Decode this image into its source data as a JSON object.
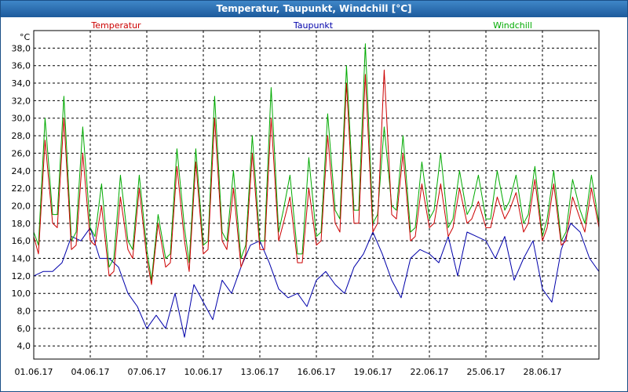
{
  "window": {
    "title": "Temperatur, Taupunkt, Windchill [°C]"
  },
  "chart_data": {
    "type": "line",
    "title": "Temperatur, Taupunkt, Windchill [°C]",
    "ylabel": "°C",
    "xlabel": "",
    "xlim": [
      0,
      30
    ],
    "ylim": [
      2.5,
      40
    ],
    "grid": true,
    "legend_position": "top",
    "y_ticks": [
      "4,0",
      "6,0",
      "8,0",
      "10,0",
      "12,0",
      "14,0",
      "16,0",
      "18,0",
      "20,0",
      "22,0",
      "24,0",
      "26,0",
      "28,0",
      "30,0",
      "32,0",
      "34,0",
      "36,0",
      "38,0"
    ],
    "x_ticks": [
      "01.06.17",
      "04.06.17",
      "07.06.17",
      "10.06.17",
      "13.06.17",
      "16.06.17",
      "19.06.17",
      "22.06.17",
      "25.06.17",
      "28.06.17"
    ],
    "series": [
      {
        "name": "Temperatur",
        "color": "#cc0000",
        "x": [
          0,
          0.25,
          0.6,
          1.0,
          1.25,
          1.6,
          2.0,
          2.25,
          2.6,
          3.0,
          3.25,
          3.6,
          4.0,
          4.25,
          4.6,
          5.0,
          5.25,
          5.6,
          6.0,
          6.25,
          6.6,
          7.0,
          7.25,
          7.6,
          8.0,
          8.25,
          8.6,
          9.0,
          9.25,
          9.6,
          10.0,
          10.25,
          10.6,
          11.0,
          11.25,
          11.6,
          12.0,
          12.25,
          12.6,
          13.0,
          13.25,
          13.6,
          14.0,
          14.25,
          14.6,
          15.0,
          15.25,
          15.6,
          16.0,
          16.25,
          16.6,
          17.0,
          17.25,
          17.6,
          18.0,
          18.25,
          18.6,
          19.0,
          19.25,
          19.6,
          20.0,
          20.25,
          20.6,
          21.0,
          21.25,
          21.6,
          22.0,
          22.25,
          22.6,
          23.0,
          23.25,
          23.6,
          24.0,
          24.25,
          24.6,
          25.0,
          25.25,
          25.6,
          26.0,
          26.25,
          26.6,
          27.0,
          27.25,
          27.6,
          28.0,
          28.25,
          28.6,
          29.0,
          29.25,
          29.6,
          30.0
        ],
        "values": [
          16.5,
          14.5,
          27.5,
          18.0,
          17.5,
          30.0,
          15.0,
          15.5,
          26.0,
          16.0,
          15.5,
          20.0,
          12.0,
          12.5,
          21.0,
          15.0,
          14.0,
          22.0,
          14.0,
          11.0,
          18.0,
          13.0,
          13.5,
          24.5,
          16.0,
          12.5,
          25.0,
          14.5,
          15.0,
          30.0,
          16.0,
          15.0,
          22.0,
          13.0,
          14.5,
          26.0,
          15.0,
          15.0,
          30.0,
          16.0,
          18.0,
          21.0,
          13.5,
          13.5,
          22.0,
          15.5,
          16.0,
          28.0,
          18.0,
          17.0,
          34.0,
          18.0,
          18.0,
          35.0,
          17.0,
          18.0,
          35.5,
          19.0,
          18.5,
          26.0,
          16.0,
          16.5,
          22.5,
          17.5,
          18.0,
          22.5,
          16.5,
          17.5,
          22.0,
          18.0,
          18.5,
          20.5,
          17.5,
          17.5,
          21.0,
          18.5,
          19.5,
          21.5,
          17.0,
          18.0,
          23.0,
          16.0,
          17.5,
          22.5,
          15.5,
          16.0,
          21.0,
          18.5,
          17.0,
          22.0,
          17.5
        ]
      },
      {
        "name": "Taupunkt",
        "color": "#0000aa",
        "x": [
          0,
          0.5,
          1.0,
          1.5,
          2.0,
          2.5,
          3.0,
          3.5,
          4.0,
          4.5,
          5.0,
          5.5,
          6.0,
          6.5,
          7.0,
          7.5,
          8.0,
          8.5,
          9.0,
          9.5,
          10.0,
          10.5,
          11.0,
          11.5,
          12.0,
          12.5,
          13.0,
          13.5,
          14.0,
          14.5,
          15.0,
          15.5,
          16.0,
          16.5,
          17.0,
          17.5,
          18.0,
          18.5,
          19.0,
          19.5,
          20.0,
          20.5,
          21.0,
          21.5,
          22.0,
          22.5,
          23.0,
          23.5,
          24.0,
          24.5,
          25.0,
          25.5,
          26.0,
          26.5,
          27.0,
          27.5,
          28.0,
          28.5,
          29.0,
          29.5,
          30.0
        ],
        "values": [
          12.0,
          12.5,
          12.5,
          13.5,
          16.5,
          16.0,
          17.5,
          14.0,
          14.0,
          13.0,
          10.0,
          8.5,
          6.0,
          7.5,
          6.0,
          10.0,
          5.0,
          11.0,
          9.0,
          7.0,
          11.5,
          10.0,
          13.0,
          15.5,
          16.0,
          13.5,
          10.5,
          9.5,
          10.0,
          8.5,
          11.5,
          12.5,
          11.0,
          10.0,
          13.0,
          14.5,
          17.0,
          14.5,
          11.5,
          9.5,
          14.0,
          15.0,
          14.5,
          13.5,
          16.5,
          12.0,
          17.0,
          16.5,
          16.0,
          14.0,
          16.5,
          11.5,
          14.0,
          16.0,
          10.5,
          9.0,
          15.0,
          18.0,
          17.0,
          14.0,
          12.5
        ]
      },
      {
        "name": "Windchill",
        "color": "#00aa00",
        "x": [
          0,
          0.25,
          0.6,
          1.0,
          1.25,
          1.6,
          2.0,
          2.25,
          2.6,
          3.0,
          3.25,
          3.6,
          4.0,
          4.25,
          4.6,
          5.0,
          5.25,
          5.6,
          6.0,
          6.25,
          6.6,
          7.0,
          7.25,
          7.6,
          8.0,
          8.25,
          8.6,
          9.0,
          9.25,
          9.6,
          10.0,
          10.25,
          10.6,
          11.0,
          11.25,
          11.6,
          12.0,
          12.25,
          12.6,
          13.0,
          13.25,
          13.6,
          14.0,
          14.25,
          14.6,
          15.0,
          15.25,
          15.6,
          16.0,
          16.25,
          16.6,
          17.0,
          17.25,
          17.6,
          18.0,
          18.25,
          18.6,
          19.0,
          19.25,
          19.6,
          20.0,
          20.25,
          20.6,
          21.0,
          21.25,
          21.6,
          22.0,
          22.25,
          22.6,
          23.0,
          23.25,
          23.6,
          24.0,
          24.25,
          24.6,
          25.0,
          25.25,
          25.6,
          26.0,
          26.25,
          26.6,
          27.0,
          27.25,
          27.6,
          28.0,
          28.25,
          28.6,
          29.0,
          29.25,
          29.6,
          30.0
        ],
        "values": [
          17.0,
          15.5,
          30.0,
          19.0,
          19.0,
          32.5,
          16.0,
          17.0,
          29.0,
          17.5,
          16.5,
          22.5,
          13.0,
          14.0,
          23.5,
          16.0,
          15.0,
          23.5,
          15.0,
          11.5,
          19.0,
          14.0,
          14.5,
          26.5,
          17.5,
          13.5,
          26.5,
          15.5,
          16.0,
          32.5,
          17.0,
          16.0,
          24.0,
          14.0,
          15.5,
          28.0,
          16.0,
          16.0,
          33.5,
          17.0,
          19.5,
          23.5,
          14.5,
          14.5,
          25.5,
          16.5,
          17.0,
          30.5,
          19.5,
          18.5,
          36.0,
          19.5,
          19.5,
          38.5,
          18.0,
          19.0,
          29.0,
          20.0,
          19.5,
          28.0,
          17.0,
          17.5,
          25.0,
          18.5,
          19.5,
          26.0,
          17.5,
          18.5,
          24.0,
          19.0,
          20.0,
          23.5,
          18.5,
          18.5,
          24.0,
          19.5,
          20.5,
          23.5,
          18.0,
          19.0,
          24.5,
          16.5,
          18.5,
          24.0,
          16.0,
          17.0,
          23.0,
          19.5,
          18.0,
          23.5,
          18.0
        ]
      }
    ]
  }
}
